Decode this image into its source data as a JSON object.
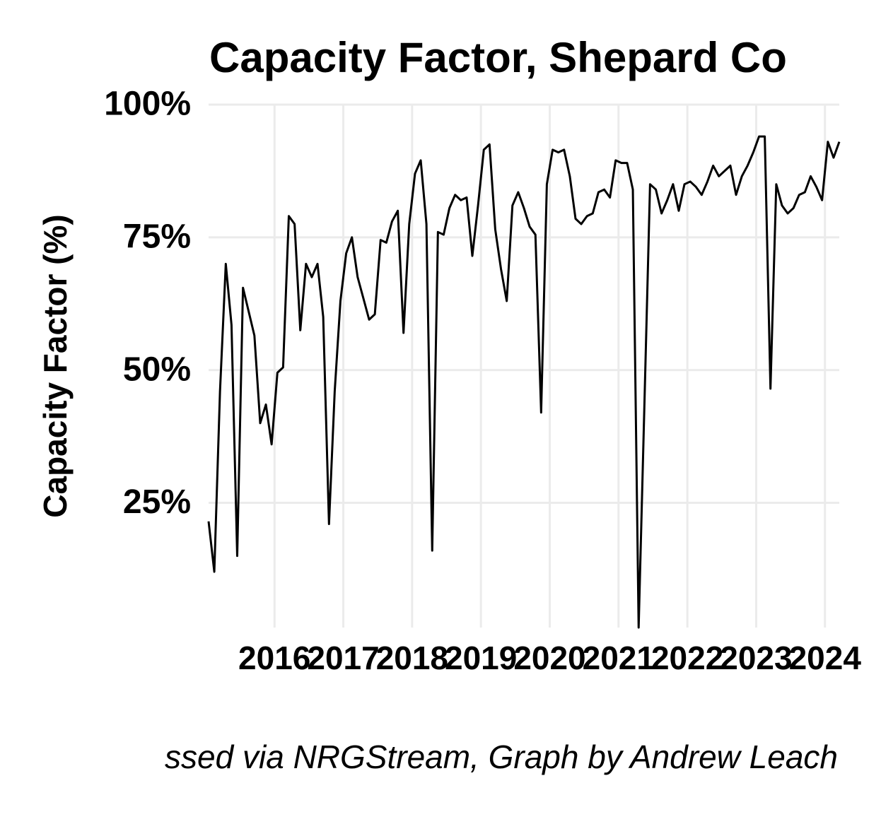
{
  "chart_data": {
    "type": "line",
    "title": "Capacity Factor, Shepard Co",
    "y_label": "Capacity Factor (%)",
    "caption": "ssed via NRGStream, Graph by Andrew Leach",
    "x": [
      2015.042,
      2015.125,
      2015.208,
      2015.292,
      2015.375,
      2015.458,
      2015.542,
      2015.625,
      2015.708,
      2015.792,
      2015.875,
      2015.958,
      2016.042,
      2016.125,
      2016.208,
      2016.292,
      2016.375,
      2016.458,
      2016.542,
      2016.625,
      2016.708,
      2016.792,
      2016.875,
      2016.958,
      2017.042,
      2017.125,
      2017.208,
      2017.292,
      2017.375,
      2017.458,
      2017.542,
      2017.625,
      2017.708,
      2017.792,
      2017.875,
      2017.958,
      2018.042,
      2018.125,
      2018.208,
      2018.292,
      2018.375,
      2018.458,
      2018.542,
      2018.625,
      2018.708,
      2018.792,
      2018.875,
      2018.958,
      2019.042,
      2019.125,
      2019.208,
      2019.292,
      2019.375,
      2019.458,
      2019.542,
      2019.625,
      2019.708,
      2019.792,
      2019.875,
      2019.958,
      2020.042,
      2020.125,
      2020.208,
      2020.292,
      2020.375,
      2020.458,
      2020.542,
      2020.625,
      2020.708,
      2020.792,
      2020.875,
      2020.958,
      2021.042,
      2021.125,
      2021.208,
      2021.292,
      2021.375,
      2021.458,
      2021.542,
      2021.625,
      2021.708,
      2021.792,
      2021.875,
      2021.958,
      2022.042,
      2022.125,
      2022.208,
      2022.292,
      2022.375,
      2022.458,
      2022.542,
      2022.625,
      2022.708,
      2022.792,
      2022.875,
      2022.958,
      2023.042,
      2023.125,
      2023.208,
      2023.292,
      2023.375,
      2023.458,
      2023.542,
      2023.625,
      2023.708,
      2023.792,
      2023.875,
      2023.958,
      2024.042,
      2024.125,
      2024.208
    ],
    "values": [
      21.5,
      12,
      46,
      70,
      58.5,
      15,
      65.5,
      61,
      56.5,
      40,
      43.5,
      36,
      49.5,
      50.5,
      79,
      77.5,
      57.5,
      70,
      67.5,
      70,
      60,
      21,
      46,
      63,
      72,
      75,
      67.5,
      63.5,
      59.5,
      60.5,
      74.5,
      74,
      78,
      80,
      57,
      77.5,
      87,
      89.5,
      77.5,
      16,
      76,
      75.5,
      80.5,
      83,
      82,
      82.5,
      71.5,
      81,
      91.5,
      92.5,
      76.5,
      69,
      63,
      81,
      83.5,
      80.5,
      77,
      75.5,
      42,
      85,
      91.5,
      91,
      91.5,
      86.5,
      78.5,
      77.5,
      79,
      79.5,
      83.5,
      84,
      82.5,
      89.5,
      89,
      89,
      84,
      1.5,
      43,
      85,
      84,
      79.5,
      82,
      85,
      80,
      85,
      85.5,
      84.5,
      83,
      85.5,
      88.5,
      86.5,
      87.5,
      88.5,
      83,
      86.5,
      88.5,
      91,
      94,
      94,
      46.5,
      85,
      81,
      79.5,
      80.5,
      83,
      83.5,
      86.5,
      84.5,
      82,
      93,
      90,
      93
    ],
    "color": "#000000",
    "xlim": [
      2015.042,
      2024.208
    ],
    "xticks": [
      2016,
      2017,
      2018,
      2019,
      2020,
      2021,
      2022,
      2023,
      2024
    ],
    "ylim": [
      1.5,
      100
    ],
    "yticks": [
      {
        "value": 25,
        "label": "25%"
      },
      {
        "value": 50,
        "label": "50%"
      },
      {
        "value": 75,
        "label": "75%"
      },
      {
        "value": 100,
        "label": "100%"
      }
    ],
    "grid": true
  }
}
